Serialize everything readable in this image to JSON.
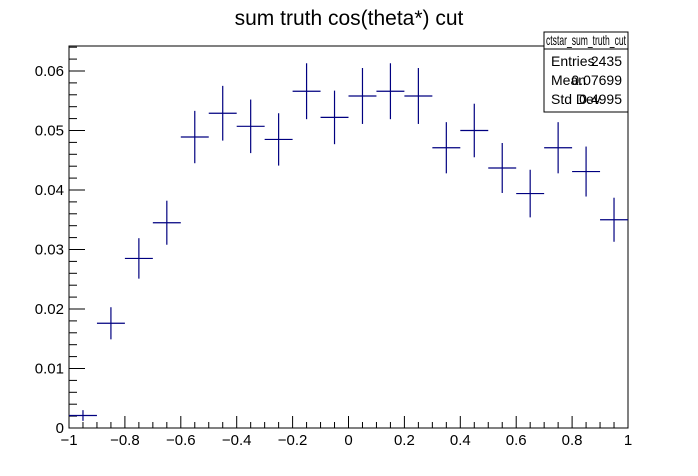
{
  "chart_data": {
    "type": "scatter",
    "title": "sum truth cos(theta*) cut",
    "xlabel": "",
    "ylabel": "",
    "xlim": [
      -1,
      1
    ],
    "ylim": [
      0,
      0.0642
    ],
    "x_ticks": [
      -1,
      -0.8,
      -0.6,
      -0.4,
      -0.2,
      0,
      0.2,
      0.4,
      0.6,
      0.8,
      1
    ],
    "x_tick_labels": [
      "−1",
      "−0.8",
      "−0.6",
      "−0.4",
      "−0.2",
      "0",
      "0.2",
      "0.4",
      "0.6",
      "0.8",
      "1"
    ],
    "y_ticks": [
      0,
      0.01,
      0.02,
      0.03,
      0.04,
      0.05,
      0.06
    ],
    "y_tick_labels": [
      "0",
      "0.01",
      "0.02",
      "0.03",
      "0.04",
      "0.05",
      "0.06"
    ],
    "marker_color": "#000080",
    "bin_width": 0.1,
    "series": [
      {
        "x": [
          -0.95,
          -0.85,
          -0.75,
          -0.65,
          -0.55,
          -0.45,
          -0.35,
          -0.25,
          -0.15,
          -0.05,
          0.05,
          0.15,
          0.25,
          0.35,
          0.45,
          0.55,
          0.65,
          0.75,
          0.85,
          0.95
        ],
        "y": [
          0.0021,
          0.0176,
          0.0285,
          0.0345,
          0.0489,
          0.0529,
          0.0507,
          0.0485,
          0.0566,
          0.0522,
          0.0558,
          0.0566,
          0.0558,
          0.0471,
          0.05,
          0.0437,
          0.0394,
          0.0471,
          0.0431,
          0.035
        ],
        "yerr": [
          0.0009,
          0.0027,
          0.0034,
          0.0037,
          0.0044,
          0.0046,
          0.0045,
          0.0044,
          0.0047,
          0.0045,
          0.0047,
          0.0047,
          0.0047,
          0.0043,
          0.0045,
          0.0042,
          0.004,
          0.0043,
          0.0042,
          0.0037
        ]
      }
    ]
  },
  "stats": {
    "name": "ctstar_sum_truth_cut",
    "rows": [
      {
        "label": "Entries",
        "value": "2435"
      },
      {
        "label": "Mean",
        "value": "0.07699"
      },
      {
        "label": "Std Dev",
        "value": "0.4995"
      }
    ]
  }
}
